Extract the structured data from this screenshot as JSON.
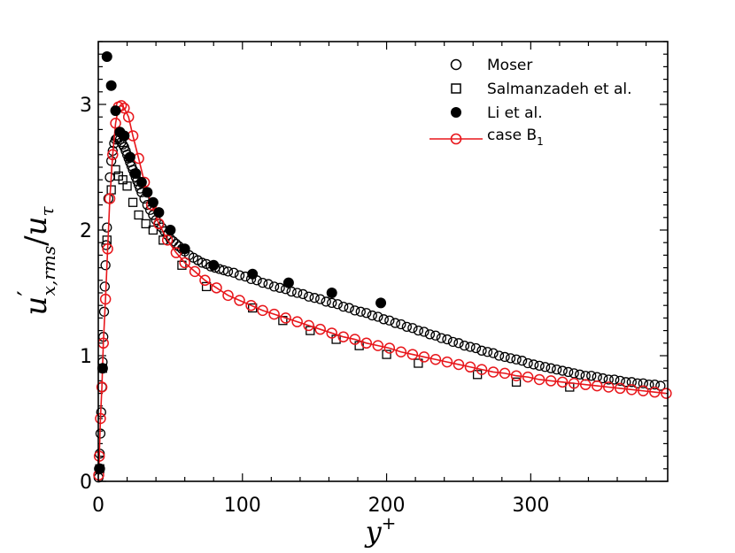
{
  "chart_data": {
    "type": "scatter",
    "x_axis": {
      "label": "y",
      "label_sup": "+",
      "range": [
        0,
        395
      ],
      "ticks": [
        0,
        100,
        200,
        300
      ],
      "tick_labels": [
        "0",
        "100",
        "200",
        "300"
      ]
    },
    "y_axis": {
      "label_main": "u",
      "label_prime": "′",
      "label_sub": "x,rms",
      "label_slash": "/",
      "label_main2": "u",
      "label_sub2": "τ",
      "range": [
        0,
        3.5
      ],
      "ticks": [
        0,
        1,
        2,
        3
      ],
      "tick_labels": [
        "0",
        "1",
        "2",
        "3"
      ]
    },
    "legend": {
      "position": "top-right",
      "entries": [
        {
          "name": "Moser",
          "marker": "open-circle",
          "color": "#000000"
        },
        {
          "name": "Salmanzadeh et al.",
          "marker": "open-square",
          "color": "#000000"
        },
        {
          "name": "Li et al.",
          "marker": "filled-circle",
          "color": "#000000"
        },
        {
          "name": "case B",
          "sub": "1",
          "marker": "open-circle-line",
          "color": "#e8161b"
        }
      ]
    },
    "series": [
      {
        "name": "Moser",
        "x": [
          0.2,
          0.5,
          1,
          1.5,
          2,
          2.5,
          3,
          3.5,
          4,
          4.5,
          5,
          5.5,
          6,
          7,
          8,
          9,
          10,
          11,
          12,
          13,
          14,
          15,
          16,
          17,
          18,
          19,
          20,
          21,
          22,
          23,
          24,
          25,
          26,
          27,
          28,
          29,
          30,
          32,
          34,
          36,
          38,
          40,
          42,
          44,
          46,
          48,
          50,
          52,
          54,
          56,
          58,
          60,
          63,
          66,
          69,
          72,
          75,
          78,
          81,
          84,
          87,
          90,
          94,
          98,
          102,
          106,
          110,
          114,
          118,
          122,
          126,
          130,
          134,
          138,
          142,
          146,
          150,
          154,
          158,
          162,
          166,
          170,
          174,
          178,
          182,
          186,
          190,
          194,
          198,
          202,
          206,
          210,
          214,
          218,
          222,
          226,
          230,
          234,
          238,
          242,
          246,
          250,
          254,
          258,
          262,
          266,
          270,
          274,
          278,
          282,
          286,
          290,
          294,
          298,
          302,
          306,
          310,
          314,
          318,
          322,
          326,
          330,
          334,
          338,
          342,
          346,
          350,
          354,
          358,
          362,
          366,
          370,
          374,
          378,
          382,
          386,
          390
        ],
        "y": [
          0.03,
          0.1,
          0.22,
          0.38,
          0.55,
          0.75,
          0.95,
          1.15,
          1.35,
          1.55,
          1.72,
          1.88,
          2.02,
          2.25,
          2.42,
          2.55,
          2.63,
          2.69,
          2.72,
          2.73,
          2.73,
          2.72,
          2.7,
          2.68,
          2.66,
          2.63,
          2.6,
          2.57,
          2.54,
          2.51,
          2.48,
          2.45,
          2.42,
          2.39,
          2.36,
          2.33,
          2.3,
          2.25,
          2.2,
          2.16,
          2.12,
          2.08,
          2.05,
          2.02,
          1.99,
          1.96,
          1.93,
          1.91,
          1.89,
          1.87,
          1.85,
          1.83,
          1.8,
          1.78,
          1.76,
          1.74,
          1.73,
          1.71,
          1.7,
          1.69,
          1.68,
          1.67,
          1.66,
          1.64,
          1.63,
          1.61,
          1.6,
          1.58,
          1.57,
          1.55,
          1.54,
          1.53,
          1.51,
          1.5,
          1.49,
          1.47,
          1.46,
          1.45,
          1.43,
          1.42,
          1.41,
          1.39,
          1.38,
          1.36,
          1.35,
          1.34,
          1.32,
          1.31,
          1.29,
          1.28,
          1.26,
          1.25,
          1.23,
          1.22,
          1.2,
          1.19,
          1.17,
          1.16,
          1.14,
          1.13,
          1.11,
          1.1,
          1.08,
          1.07,
          1.06,
          1.04,
          1.03,
          1.02,
          1.0,
          0.99,
          0.98,
          0.97,
          0.96,
          0.94,
          0.93,
          0.92,
          0.91,
          0.9,
          0.89,
          0.88,
          0.87,
          0.86,
          0.85,
          0.84,
          0.84,
          0.83,
          0.82,
          0.81,
          0.81,
          0.8,
          0.79,
          0.79,
          0.78,
          0.78,
          0.77,
          0.77,
          0.76
        ]
      },
      {
        "name": "Salmanzadeh et al.",
        "x": [
          1,
          3,
          6,
          9,
          12,
          14,
          17,
          20,
          24,
          28,
          33,
          38,
          45,
          58,
          75,
          107,
          128,
          147,
          165,
          181,
          200,
          222,
          263,
          290,
          327
        ],
        "y": [
          0.1,
          0.9,
          1.92,
          2.32,
          2.48,
          2.43,
          2.4,
          2.35,
          2.22,
          2.12,
          2.05,
          2.0,
          1.92,
          1.72,
          1.55,
          1.38,
          1.28,
          1.2,
          1.13,
          1.08,
          1.01,
          0.94,
          0.85,
          0.79,
          0.75
        ]
      },
      {
        "name": "Li et al.",
        "x": [
          1,
          3,
          6,
          9,
          12,
          15,
          18,
          22,
          26,
          30,
          34,
          38,
          42,
          50,
          60,
          80,
          107,
          132,
          162,
          196
        ],
        "y": [
          0.1,
          0.9,
          3.38,
          3.15,
          2.95,
          2.78,
          2.75,
          2.58,
          2.45,
          2.38,
          2.3,
          2.22,
          2.14,
          2.0,
          1.85,
          1.72,
          1.65,
          1.58,
          1.5,
          1.42
        ]
      },
      {
        "name": "case B1",
        "x": [
          0.3,
          0.7,
          1.5,
          2.5,
          3.5,
          5,
          6.5,
          8,
          10,
          12,
          14,
          16,
          18,
          21,
          24,
          28,
          32,
          37,
          42,
          48,
          54,
          60,
          67,
          74,
          82,
          90,
          98,
          106,
          114,
          122,
          130,
          138,
          146,
          154,
          162,
          170,
          178,
          186,
          194,
          202,
          210,
          218,
          226,
          234,
          242,
          250,
          258,
          266,
          274,
          282,
          290,
          298,
          306,
          314,
          322,
          330,
          338,
          346,
          354,
          362,
          370,
          378,
          386,
          394
        ],
        "y": [
          0.05,
          0.2,
          0.5,
          0.75,
          1.1,
          1.45,
          1.85,
          2.25,
          2.6,
          2.85,
          2.98,
          2.99,
          2.97,
          2.9,
          2.75,
          2.57,
          2.38,
          2.2,
          2.05,
          1.92,
          1.82,
          1.74,
          1.67,
          1.6,
          1.54,
          1.48,
          1.44,
          1.4,
          1.36,
          1.33,
          1.3,
          1.27,
          1.24,
          1.21,
          1.18,
          1.15,
          1.13,
          1.1,
          1.08,
          1.06,
          1.03,
          1.01,
          0.99,
          0.97,
          0.95,
          0.93,
          0.91,
          0.89,
          0.87,
          0.86,
          0.84,
          0.83,
          0.81,
          0.8,
          0.79,
          0.78,
          0.77,
          0.76,
          0.75,
          0.74,
          0.73,
          0.72,
          0.71,
          0.7
        ]
      }
    ]
  }
}
